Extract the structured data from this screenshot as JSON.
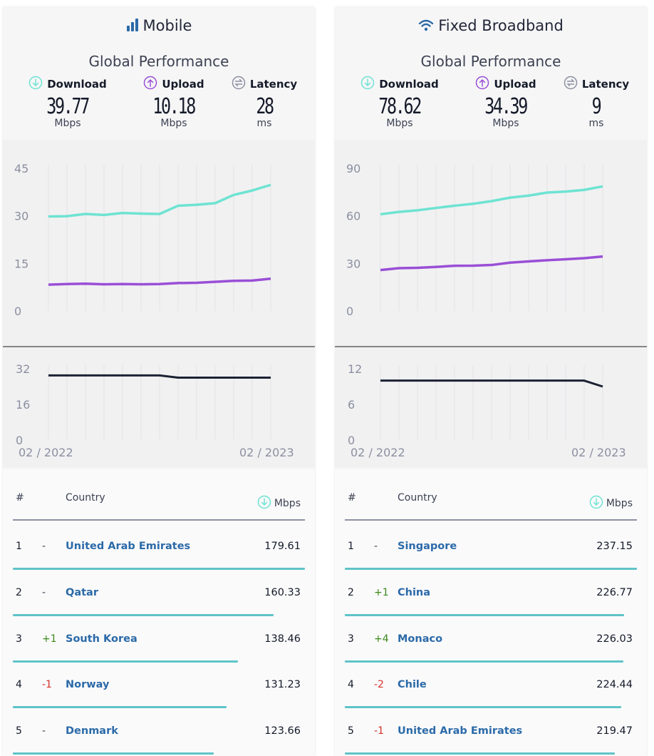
{
  "colors": {
    "download": "#6ee3d2",
    "upload": "#9a4fd6",
    "latency": "#1c2233",
    "bar": "#5fc3c7",
    "link": "#2b6aa8"
  },
  "panels": [
    {
      "title": "Mobile",
      "icon": "signal-bars-icon",
      "subtitle": "Global Performance",
      "metrics": [
        {
          "label": "Download",
          "value": "39.77",
          "unit": "Mbps",
          "icon": "download-arrow-icon"
        },
        {
          "label": "Upload",
          "value": "10.18",
          "unit": "Mbps",
          "icon": "upload-arrow-icon"
        },
        {
          "label": "Latency",
          "value": "28",
          "unit": "ms",
          "icon": "latency-icon"
        }
      ],
      "chart": {
        "speed_ticks": [
          "45",
          "30",
          "15",
          "0"
        ],
        "latency_ticks": [
          "32",
          "16",
          "0"
        ],
        "x_start": "02 / 2022",
        "x_end": "02 / 2023"
      },
      "table": {
        "col_rank": "#",
        "col_country": "Country",
        "col_speed": "Mbps",
        "rows": [
          {
            "rank": "1",
            "change": "-",
            "country": "United Arab Emirates",
            "speed": "179.61"
          },
          {
            "rank": "2",
            "change": "-",
            "country": "Qatar",
            "speed": "160.33"
          },
          {
            "rank": "3",
            "change": "+1",
            "country": "South Korea",
            "speed": "138.46"
          },
          {
            "rank": "4",
            "change": "-1",
            "country": "Norway",
            "speed": "131.23"
          },
          {
            "rank": "5",
            "change": "-",
            "country": "Denmark",
            "speed": "123.66"
          }
        ]
      }
    },
    {
      "title": "Fixed Broadband",
      "icon": "wifi-icon",
      "subtitle": "Global Performance",
      "metrics": [
        {
          "label": "Download",
          "value": "78.62",
          "unit": "Mbps",
          "icon": "download-arrow-icon"
        },
        {
          "label": "Upload",
          "value": "34.39",
          "unit": "Mbps",
          "icon": "upload-arrow-icon"
        },
        {
          "label": "Latency",
          "value": "9",
          "unit": "ms",
          "icon": "latency-icon"
        }
      ],
      "chart": {
        "speed_ticks": [
          "90",
          "60",
          "30",
          "0"
        ],
        "latency_ticks": [
          "12",
          "6",
          "0"
        ],
        "x_start": "02 / 2022",
        "x_end": "02 / 2023"
      },
      "table": {
        "col_rank": "#",
        "col_country": "Country",
        "col_speed": "Mbps",
        "rows": [
          {
            "rank": "1",
            "change": "-",
            "country": "Singapore",
            "speed": "237.15"
          },
          {
            "rank": "2",
            "change": "+1",
            "country": "China",
            "speed": "226.77"
          },
          {
            "rank": "3",
            "change": "+4",
            "country": "Monaco",
            "speed": "226.03"
          },
          {
            "rank": "4",
            "change": "-2",
            "country": "Chile",
            "speed": "224.44"
          },
          {
            "rank": "5",
            "change": "-1",
            "country": "United Arab Emirates",
            "speed": "219.47"
          }
        ]
      }
    }
  ],
  "chart_data": [
    {
      "type": "line",
      "chart": "mobile-speed",
      "x": [
        "02/2022",
        "03/2022",
        "04/2022",
        "05/2022",
        "06/2022",
        "07/2022",
        "08/2022",
        "09/2022",
        "10/2022",
        "11/2022",
        "12/2022",
        "01/2023",
        "02/2023"
      ],
      "series": [
        {
          "name": "Download",
          "values": [
            29.8,
            29.9,
            30.6,
            30.3,
            30.9,
            30.7,
            30.6,
            33.2,
            33.5,
            34.0,
            36.6,
            38.0,
            39.77
          ]
        },
        {
          "name": "Upload",
          "values": [
            8.3,
            8.5,
            8.6,
            8.4,
            8.5,
            8.4,
            8.5,
            8.8,
            8.9,
            9.2,
            9.5,
            9.6,
            10.18
          ]
        }
      ],
      "ylim": [
        0,
        45
      ]
    },
    {
      "type": "line",
      "chart": "mobile-latency",
      "x": [
        "02/2022",
        "03/2022",
        "04/2022",
        "05/2022",
        "06/2022",
        "07/2022",
        "08/2022",
        "09/2022",
        "10/2022",
        "11/2022",
        "12/2022",
        "01/2023",
        "02/2023"
      ],
      "series": [
        {
          "name": "Latency",
          "values": [
            29,
            29,
            29,
            29,
            29,
            29,
            29,
            28,
            28,
            28,
            28,
            28,
            28
          ]
        }
      ],
      "ylim": [
        0,
        32
      ]
    },
    {
      "type": "line",
      "chart": "fixed-speed",
      "x": [
        "02/2022",
        "03/2022",
        "04/2022",
        "05/2022",
        "06/2022",
        "07/2022",
        "08/2022",
        "09/2022",
        "10/2022",
        "11/2022",
        "12/2022",
        "01/2023",
        "02/2023"
      ],
      "series": [
        {
          "name": "Download",
          "values": [
            61.0,
            62.5,
            63.5,
            65.0,
            66.4,
            67.6,
            69.3,
            71.5,
            72.8,
            74.7,
            75.3,
            76.4,
            78.62
          ]
        },
        {
          "name": "Upload",
          "values": [
            25.8,
            27.0,
            27.2,
            27.8,
            28.5,
            28.6,
            29.0,
            30.5,
            31.3,
            32.0,
            32.6,
            33.3,
            34.39
          ]
        }
      ],
      "ylim": [
        0,
        90
      ]
    },
    {
      "type": "line",
      "chart": "fixed-latency",
      "x": [
        "02/2022",
        "03/2022",
        "04/2022",
        "05/2022",
        "06/2022",
        "07/2022",
        "08/2022",
        "09/2022",
        "10/2022",
        "11/2022",
        "12/2022",
        "01/2023",
        "02/2023"
      ],
      "series": [
        {
          "name": "Latency",
          "values": [
            10,
            10,
            10,
            10,
            10,
            10,
            10,
            10,
            10,
            10,
            10,
            10,
            9
          ]
        }
      ],
      "ylim": [
        0,
        12
      ]
    }
  ]
}
